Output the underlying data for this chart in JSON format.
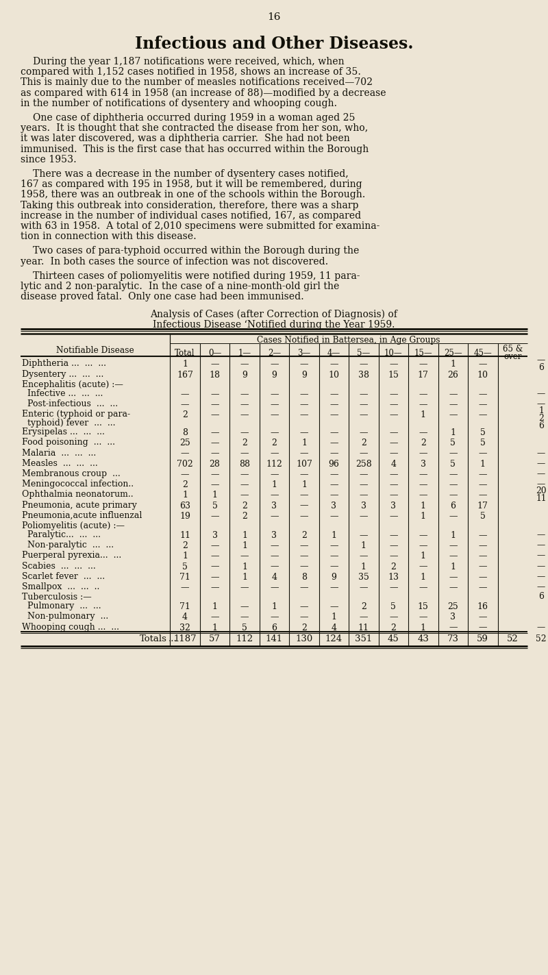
{
  "page_number": "16",
  "title": "Infectious and Other Diseases.",
  "bg_color": "#ede5d5",
  "text_color": "#111008",
  "para1_lines": [
    "    During the year 1,187 notifications were received, which, when",
    "compared with 1,152 cases notified in 1958, shows an increase of 35.",
    "This is mainly due to the number of measles notifications received—702",
    "as compared with 614 in 1958 (an increase of 88)—modified by a decrease",
    "in the number of notifications of dysentery and whooping cough."
  ],
  "para2_lines": [
    "    One case of diphtheria occurred during 1959 in a woman aged 25",
    "years.  It is thought that she contracted the disease from her son, who,",
    "it was later discovered, was a diphtheria carrier.  She had not been",
    "immunised.  This is the first case that has occurred within the Borough",
    "since 1953."
  ],
  "para3_lines": [
    "    There was a decrease in the number of dysentery cases notified,",
    "167 as compared with 195 in 1958, but it will be remembered, during",
    "1958, there was an outbreak in one of the schools within the Borough.",
    "Taking this outbreak into consideration, therefore, there was a sharp",
    "increase in the number of individual cases notified, 167, as compared",
    "with 63 in 1958.  A total of 2,010 specimens were submitted for examina-",
    "tion in connection with this disease."
  ],
  "para4_lines": [
    "    Two cases of para-typhoid occurred within the Borough during the",
    "year.  In both cases the source of infection was not discovered."
  ],
  "para5_lines": [
    "    Thirteen cases of poliomyelitis were notified during 1959, 11 para-",
    "lytic and 2 non-paralytic.  In the case of a nine-month-old girl the",
    "disease proved fatal.  Only one case had been immunised."
  ],
  "table_title_line1": "Analysis of Cases (after Correction of Diagnosis) of",
  "table_title_line2": "Infectious Disease ‘Notified during the Year 1959.",
  "col_header_top": "Cases Notified in Battersea, in Age Groups",
  "col_header_left": "Notifiable Disease",
  "col_headers": [
    "Total",
    "0—",
    "1—",
    "2—",
    "3—",
    "4—",
    "5—",
    "10—",
    "15—",
    "25—",
    "45—",
    "65 &\nover"
  ],
  "rows": [
    {
      "name": "Diphtheria ...  ...  ...",
      "indent": false,
      "header_only": false,
      "vals": [
        "1",
        "—",
        "—",
        "—",
        "—",
        "—",
        "—",
        "—",
        "—",
        "1",
        "—",
        ""
      ],
      "right_annotation": [
        "—",
        "6"
      ]
    },
    {
      "name": "Dysentery ...  ...  ...",
      "indent": false,
      "header_only": false,
      "vals": [
        "167",
        "18",
        "9",
        "9",
        "9",
        "10",
        "38",
        "15",
        "17",
        "26",
        "10",
        ""
      ],
      "right_annotation": []
    },
    {
      "name": "Encephalitis (acute) :—",
      "indent": false,
      "header_only": true,
      "vals": [],
      "right_annotation": []
    },
    {
      "name": "  Infective ...  ...  ...",
      "indent": true,
      "header_only": false,
      "vals": [
        "—",
        "—",
        "—",
        "—",
        "—",
        "—",
        "—",
        "—",
        "—",
        "—",
        "—",
        ""
      ],
      "right_annotation": [
        "—"
      ]
    },
    {
      "name": "  Post-infectious  ...  ...",
      "indent": true,
      "header_only": false,
      "vals": [
        "—",
        "—",
        "—",
        "—",
        "—",
        "—",
        "—",
        "—",
        "—",
        "—",
        "—",
        ""
      ],
      "right_annotation": [
        "—"
      ]
    },
    {
      "name": "Enteric (typhoid or para-",
      "name2": "  typhoid) fever  ...  ...",
      "indent": false,
      "header_only": false,
      "twolines": true,
      "vals": [
        "2",
        "—",
        "—",
        "—",
        "—",
        "—",
        "—",
        "—",
        "1",
        "—",
        "—",
        ""
      ],
      "right_annotation": [
        "1",
        "2",
        "6"
      ]
    },
    {
      "name": "Erysipelas ...  ...  ...",
      "indent": false,
      "header_only": false,
      "vals": [
        "8",
        "—",
        "—",
        "—",
        "—",
        "—",
        "—",
        "—",
        "—",
        "1",
        "5",
        ""
      ],
      "right_annotation": []
    },
    {
      "name": "Food poisoning  ...  ...",
      "indent": false,
      "header_only": false,
      "vals": [
        "25",
        "—",
        "2",
        "2",
        "1",
        "—",
        "2",
        "—",
        "2",
        "5",
        "5",
        ""
      ],
      "right_annotation": []
    },
    {
      "name": "Malaria  ...  ...  ...",
      "indent": false,
      "header_only": false,
      "vals": [
        "—",
        "—",
        "—",
        "—",
        "—",
        "—",
        "—",
        "—",
        "—",
        "—",
        "—",
        ""
      ],
      "right_annotation": [
        "—"
      ]
    },
    {
      "name": "Measles  ...  ...  ...",
      "indent": false,
      "header_only": false,
      "vals": [
        "702",
        "28",
        "88",
        "112",
        "107",
        "96",
        "258",
        "4",
        "3",
        "5",
        "1",
        ""
      ],
      "right_annotation": [
        "—"
      ]
    },
    {
      "name": "Membranous croup  ...",
      "indent": false,
      "header_only": false,
      "vals": [
        "—",
        "—",
        "—",
        "—",
        "—",
        "—",
        "—",
        "—",
        "—",
        "—",
        "—",
        ""
      ],
      "right_annotation": [
        "—"
      ]
    },
    {
      "name": "Meningococcal infection..",
      "indent": false,
      "header_only": false,
      "vals": [
        "2",
        "—",
        "—",
        "1",
        "1",
        "—",
        "—",
        "—",
        "—",
        "—",
        "—",
        ""
      ],
      "right_annotation": [
        "—"
      ]
    },
    {
      "name": "Ophthalmia neonatorum..",
      "indent": false,
      "header_only": false,
      "vals": [
        "1",
        "1",
        "—",
        "—",
        "—",
        "—",
        "—",
        "—",
        "—",
        "—",
        "—",
        ""
      ],
      "right_annotation": [
        "20",
        "11"
      ]
    },
    {
      "name": "Pneumonia, acute primary",
      "indent": false,
      "header_only": false,
      "vals": [
        "63",
        "5",
        "2",
        "3",
        "—",
        "3",
        "3",
        "3",
        "1",
        "6",
        "17",
        ""
      ],
      "right_annotation": []
    },
    {
      "name": "Pneumonia,acute influenzal",
      "indent": false,
      "header_only": false,
      "vals": [
        "19",
        "—",
        "2",
        "—",
        "—",
        "—",
        "—",
        "—",
        "1",
        "—",
        "5",
        ""
      ],
      "right_annotation": []
    },
    {
      "name": "Poliomyelitis (acute) :—",
      "indent": false,
      "header_only": true,
      "vals": [],
      "right_annotation": []
    },
    {
      "name": "  Paralytic...  ...  ...",
      "indent": true,
      "header_only": false,
      "vals": [
        "11",
        "3",
        "1",
        "3",
        "2",
        "1",
        "—",
        "—",
        "—",
        "1",
        "—",
        ""
      ],
      "right_annotation": [
        "—"
      ]
    },
    {
      "name": "  Non-paralytic  ...  ...",
      "indent": true,
      "header_only": false,
      "vals": [
        "2",
        "—",
        "1",
        "—",
        "—",
        "—",
        "1",
        "—",
        "—",
        "—",
        "—",
        ""
      ],
      "right_annotation": [
        "—"
      ]
    },
    {
      "name": "Puerperal pyrexia...  ...",
      "indent": false,
      "header_only": false,
      "vals": [
        "1",
        "—",
        "—",
        "—",
        "—",
        "—",
        "—",
        "—",
        "1",
        "—",
        "—",
        ""
      ],
      "right_annotation": [
        "—"
      ]
    },
    {
      "name": "Scabies  ...  ...  ...",
      "indent": false,
      "header_only": false,
      "vals": [
        "5",
        "—",
        "1",
        "—",
        "—",
        "—",
        "1",
        "2",
        "—",
        "1",
        "—",
        ""
      ],
      "right_annotation": [
        "—"
      ]
    },
    {
      "name": "Scarlet fever  ...  ...",
      "indent": false,
      "header_only": false,
      "vals": [
        "71",
        "—",
        "1",
        "4",
        "8",
        "9",
        "35",
        "13",
        "1",
        "—",
        "—",
        ""
      ],
      "right_annotation": [
        "—"
      ]
    },
    {
      "name": "Smallpox  ...  ...  ..",
      "indent": false,
      "header_only": false,
      "vals": [
        "—",
        "—",
        "—",
        "—",
        "—",
        "—",
        "—",
        "—",
        "—",
        "—",
        "—",
        ""
      ],
      "right_annotation": [
        "—"
      ]
    },
    {
      "name": "Tuberculosis :—",
      "indent": false,
      "header_only": true,
      "vals": [],
      "right_annotation": [
        "6"
      ]
    },
    {
      "name": "  Pulmonary  ...  ...",
      "indent": true,
      "header_only": false,
      "vals": [
        "71",
        "1",
        "—",
        "1",
        "—",
        "—",
        "2",
        "5",
        "15",
        "25",
        "16",
        ""
      ],
      "right_annotation": []
    },
    {
      "name": "  Non-pulmonary  ...",
      "indent": true,
      "header_only": false,
      "vals": [
        "4",
        "—",
        "—",
        "—",
        "—",
        "1",
        "—",
        "—",
        "—",
        "3",
        "—",
        ""
      ],
      "right_annotation": []
    },
    {
      "name": "Whooping cough ...  ...",
      "indent": false,
      "header_only": false,
      "vals": [
        "32",
        "1",
        "5",
        "6",
        "2",
        "4",
        "11",
        "2",
        "1",
        "—",
        "—",
        ""
      ],
      "right_annotation": [
        "—"
      ]
    }
  ],
  "totals_label": "Totals",
  "totals_dots": "...",
  "totals_vals": [
    "1187",
    "57",
    "112",
    "141",
    "130",
    "124",
    "351",
    "45",
    "43",
    "73",
    "59",
    "52"
  ]
}
